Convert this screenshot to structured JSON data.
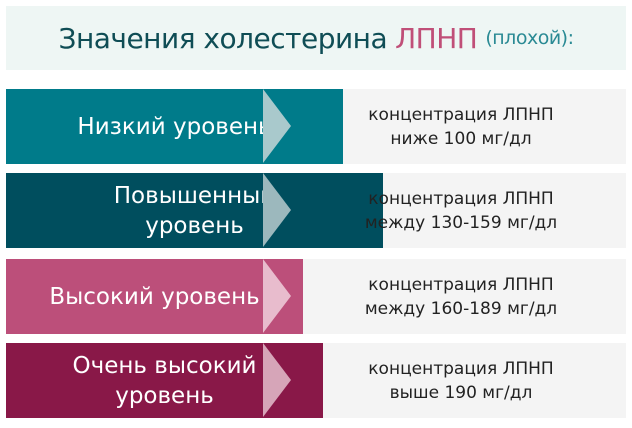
{
  "title": {
    "main": "Значения холестерина",
    "highlight": "ЛПНП",
    "note": "(плохой):"
  },
  "colors": {
    "title_bg": "#eef6f4",
    "highlight": "#c04f78"
  },
  "levels": [
    {
      "label": "Низкий уровень",
      "line1": "концентрация ЛПНП",
      "line2": "ниже 100 мг/дл",
      "color": "#007b8a",
      "arrow": "#a9c9cc"
    },
    {
      "label": "Повышенный уровень",
      "line1": "концентрация ЛПНП",
      "line2": "между 130-159 мг/дл",
      "color": "#004e5e",
      "arrow": "#9cb8bd"
    },
    {
      "label": "Высокий уровень",
      "line1": "концентрация ЛПНП",
      "line2": "между 160-189 мг/дл",
      "color": "#bc4f7a",
      "arrow": "#e8bccd"
    },
    {
      "label": "Очень высокий уровень",
      "line1": "концентрация ЛПНП",
      "line2": "выше 190 мг/дл",
      "color": "#891848",
      "arrow": "#d6a5b8"
    }
  ]
}
